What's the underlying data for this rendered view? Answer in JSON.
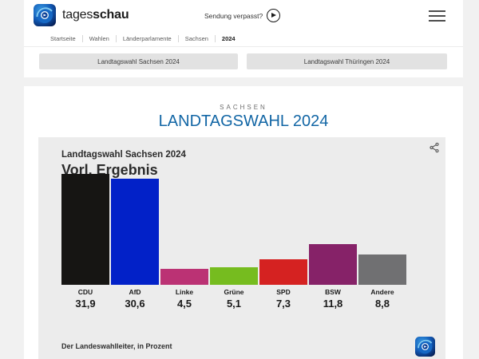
{
  "header": {
    "brand_regular": "tages",
    "brand_bold": "schau",
    "sendung_verpasst": "Sendung verpasst?"
  },
  "icons": {
    "brand": "tagesschau-app-icon",
    "play": "play-circle-icon",
    "menu": "hamburger-icon",
    "share": "share-icon"
  },
  "breadcrumb": {
    "items": [
      "Startseite",
      "Wahlen",
      "Länderparlamente",
      "Sachsen",
      "2024"
    ]
  },
  "nav_buttons": [
    {
      "label": "Landtagswahl Sachsen 2024"
    },
    {
      "label": "Landtagswahl Thüringen 2024"
    }
  ],
  "main": {
    "kicker": "SACHSEN",
    "title": "LANDTAGSWAHL 2024",
    "title_color": "#1266a5"
  },
  "chart": {
    "title": "Landtagswahl Sachsen 2024",
    "subtitle": "Vorl. Ergebnis",
    "source": "Der Landeswahlleiter, in Prozent"
  },
  "chart_data": {
    "type": "bar",
    "title": "Landtagswahl Sachsen 2024 – Vorl. Ergebnis",
    "categories": [
      "CDU",
      "AfD",
      "Linke",
      "Grüne",
      "SPD",
      "BSW",
      "Andere"
    ],
    "values": [
      31.9,
      30.6,
      4.5,
      5.1,
      7.3,
      11.8,
      8.8
    ],
    "value_labels": [
      "31,9",
      "30,6",
      "4,5",
      "5,1",
      "7,3",
      "11,8",
      "8,8"
    ],
    "colors": [
      "#161513",
      "#0221c8",
      "#bb3274",
      "#76bc1f",
      "#d52221",
      "#862268",
      "#707072"
    ],
    "xlabel": "",
    "ylabel": "Prozent",
    "ylim": [
      0,
      35
    ],
    "grid": false,
    "legend": "none",
    "source": "Der Landeswahlleiter, in Prozent"
  }
}
